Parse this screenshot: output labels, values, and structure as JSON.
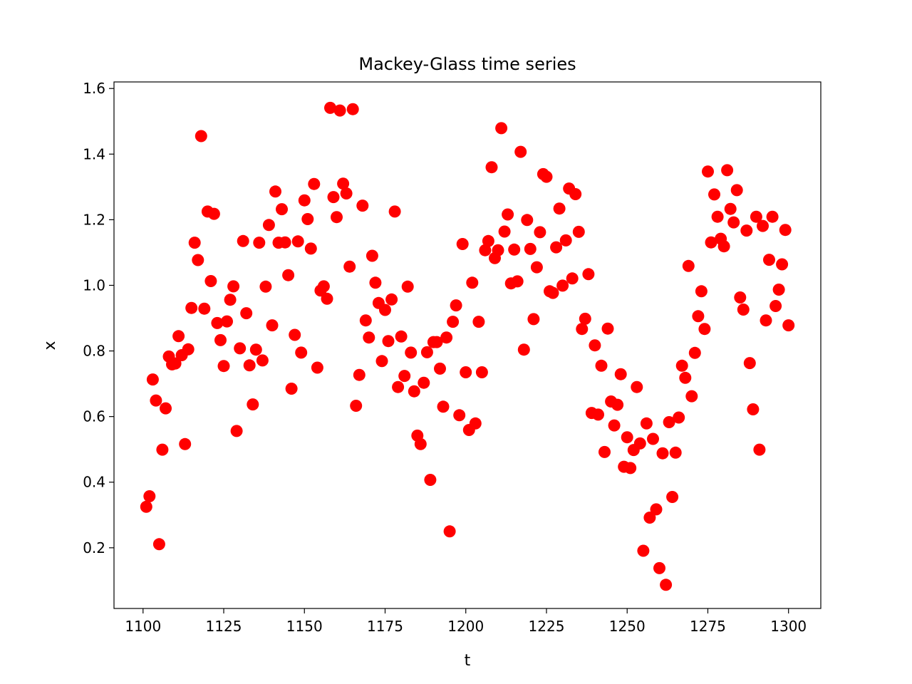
{
  "chart_data": {
    "type": "scatter",
    "title": "Mackey-Glass time series",
    "xlabel": "t",
    "ylabel": "x",
    "xlim": [
      1091,
      1310
    ],
    "ylim": [
      0.015,
      1.62
    ],
    "x_ticks": [
      1100,
      1125,
      1150,
      1175,
      1200,
      1225,
      1250,
      1275,
      1300
    ],
    "y_ticks": [
      0.2,
      0.4,
      0.6,
      0.8,
      1.0,
      1.2,
      1.4,
      1.6
    ],
    "x_tick_labels": [
      "1100",
      "1125",
      "1150",
      "1175",
      "1200",
      "1225",
      "1250",
      "1275",
      "1300"
    ],
    "y_tick_labels": [
      "0.2",
      "0.4",
      "0.6",
      "0.8",
      "1.0",
      "1.2",
      "1.4",
      "1.6"
    ],
    "grid": false,
    "marker_color": "#ff0000",
    "series": [
      {
        "x": [
          1101,
          1102,
          1103,
          1104,
          1105,
          1106,
          1107,
          1108,
          1109,
          1110,
          1111,
          1112,
          1113,
          1114,
          1115,
          1116,
          1117,
          1118,
          1119,
          1120,
          1121,
          1122,
          1123,
          1124,
          1125,
          1126,
          1127,
          1128,
          1129,
          1130,
          1131,
          1132,
          1133,
          1134,
          1135,
          1136,
          1137,
          1138,
          1139,
          1140,
          1141,
          1142,
          1143,
          1144,
          1145,
          1146,
          1147,
          1148,
          1149,
          1150,
          1151,
          1152,
          1153,
          1154,
          1155,
          1156,
          1157,
          1158,
          1159,
          1160,
          1161,
          1162,
          1163,
          1164,
          1165,
          1166,
          1167,
          1168,
          1169,
          1170,
          1171,
          1172,
          1173,
          1174,
          1175,
          1176,
          1177,
          1178,
          1179,
          1180,
          1181,
          1182,
          1183,
          1184,
          1185,
          1186,
          1187,
          1188,
          1189,
          1190,
          1191,
          1192,
          1193,
          1194,
          1195,
          1196,
          1197,
          1198,
          1199,
          1200,
          1201,
          1202,
          1203,
          1204,
          1205,
          1206,
          1207,
          1208,
          1209,
          1210,
          1211,
          1212,
          1213,
          1214,
          1215,
          1216,
          1217,
          1218,
          1219,
          1220,
          1221,
          1222,
          1223,
          1224,
          1225,
          1226,
          1227,
          1228,
          1229,
          1230,
          1231,
          1232,
          1233,
          1234,
          1235,
          1236,
          1237,
          1238,
          1239,
          1240,
          1241,
          1242,
          1243,
          1244,
          1245,
          1246,
          1247,
          1248,
          1249,
          1250,
          1251,
          1252,
          1253,
          1254,
          1255,
          1256,
          1257,
          1258,
          1259,
          1260,
          1261,
          1262,
          1263,
          1264,
          1265,
          1266,
          1267,
          1268,
          1269,
          1270,
          1271,
          1272,
          1273,
          1274,
          1275,
          1276,
          1277,
          1278,
          1279,
          1280,
          1281,
          1282,
          1283,
          1284,
          1285,
          1286,
          1287,
          1288,
          1289,
          1290,
          1291,
          1292,
          1293,
          1294,
          1295,
          1296,
          1297,
          1298,
          1299,
          1300
        ],
        "y": [
          0.325,
          0.357,
          0.713,
          0.649,
          0.211,
          0.499,
          0.625,
          0.783,
          0.759,
          0.762,
          0.845,
          0.787,
          0.516,
          0.805,
          0.931,
          1.13,
          1.077,
          1.455,
          0.929,
          1.225,
          1.013,
          1.218,
          0.885,
          0.833,
          0.754,
          0.89,
          0.956,
          0.997,
          0.556,
          0.808,
          1.135,
          0.915,
          0.756,
          0.637,
          0.804,
          1.13,
          0.771,
          0.996,
          1.184,
          0.878,
          1.286,
          1.13,
          1.232,
          1.131,
          1.031,
          0.685,
          0.849,
          1.134,
          0.795,
          1.259,
          1.202,
          1.112,
          1.309,
          0.749,
          0.984,
          0.997,
          0.959,
          1.541,
          1.269,
          1.208,
          1.533,
          1.31,
          1.28,
          1.057,
          1.537,
          0.633,
          0.727,
          1.243,
          0.893,
          0.841,
          1.09,
          1.008,
          0.946,
          0.769,
          0.925,
          0.83,
          0.957,
          1.225,
          0.69,
          0.844,
          0.724,
          0.996,
          0.795,
          0.677,
          0.542,
          0.516,
          0.703,
          0.796,
          0.407,
          0.827,
          0.827,
          0.746,
          0.63,
          0.841,
          0.25,
          0.889,
          0.939,
          0.604,
          1.126,
          0.735,
          0.559,
          1.008,
          0.579,
          0.889,
          0.735,
          1.107,
          1.135,
          1.36,
          1.083,
          1.107,
          1.479,
          1.164,
          1.216,
          1.006,
          1.109,
          1.012,
          1.407,
          0.804,
          1.199,
          1.111,
          0.897,
          1.055,
          1.162,
          1.339,
          1.331,
          0.982,
          0.977,
          1.116,
          1.234,
          0.999,
          1.137,
          1.295,
          1.021,
          1.278,
          1.163,
          0.867,
          0.898,
          1.034,
          0.611,
          0.817,
          0.606,
          0.755,
          0.492,
          0.868,
          0.646,
          0.573,
          0.636,
          0.729,
          0.447,
          0.537,
          0.443,
          0.498,
          0.69,
          0.518,
          0.191,
          0.579,
          0.292,
          0.532,
          0.317,
          0.138,
          0.488,
          0.087,
          0.583,
          0.355,
          0.49,
          0.597,
          0.755,
          0.718,
          1.059,
          0.662,
          0.794,
          0.906,
          0.982,
          0.867,
          1.347,
          1.131,
          1.277,
          1.209,
          1.142,
          1.119,
          1.351,
          1.233,
          1.192,
          1.29,
          0.963,
          0.926,
          1.167,
          0.763,
          0.622,
          1.209,
          0.499,
          1.181,
          0.893,
          1.078,
          1.209,
          0.937,
          0.987,
          1.064,
          1.169,
          0.878
        ]
      }
    ]
  }
}
